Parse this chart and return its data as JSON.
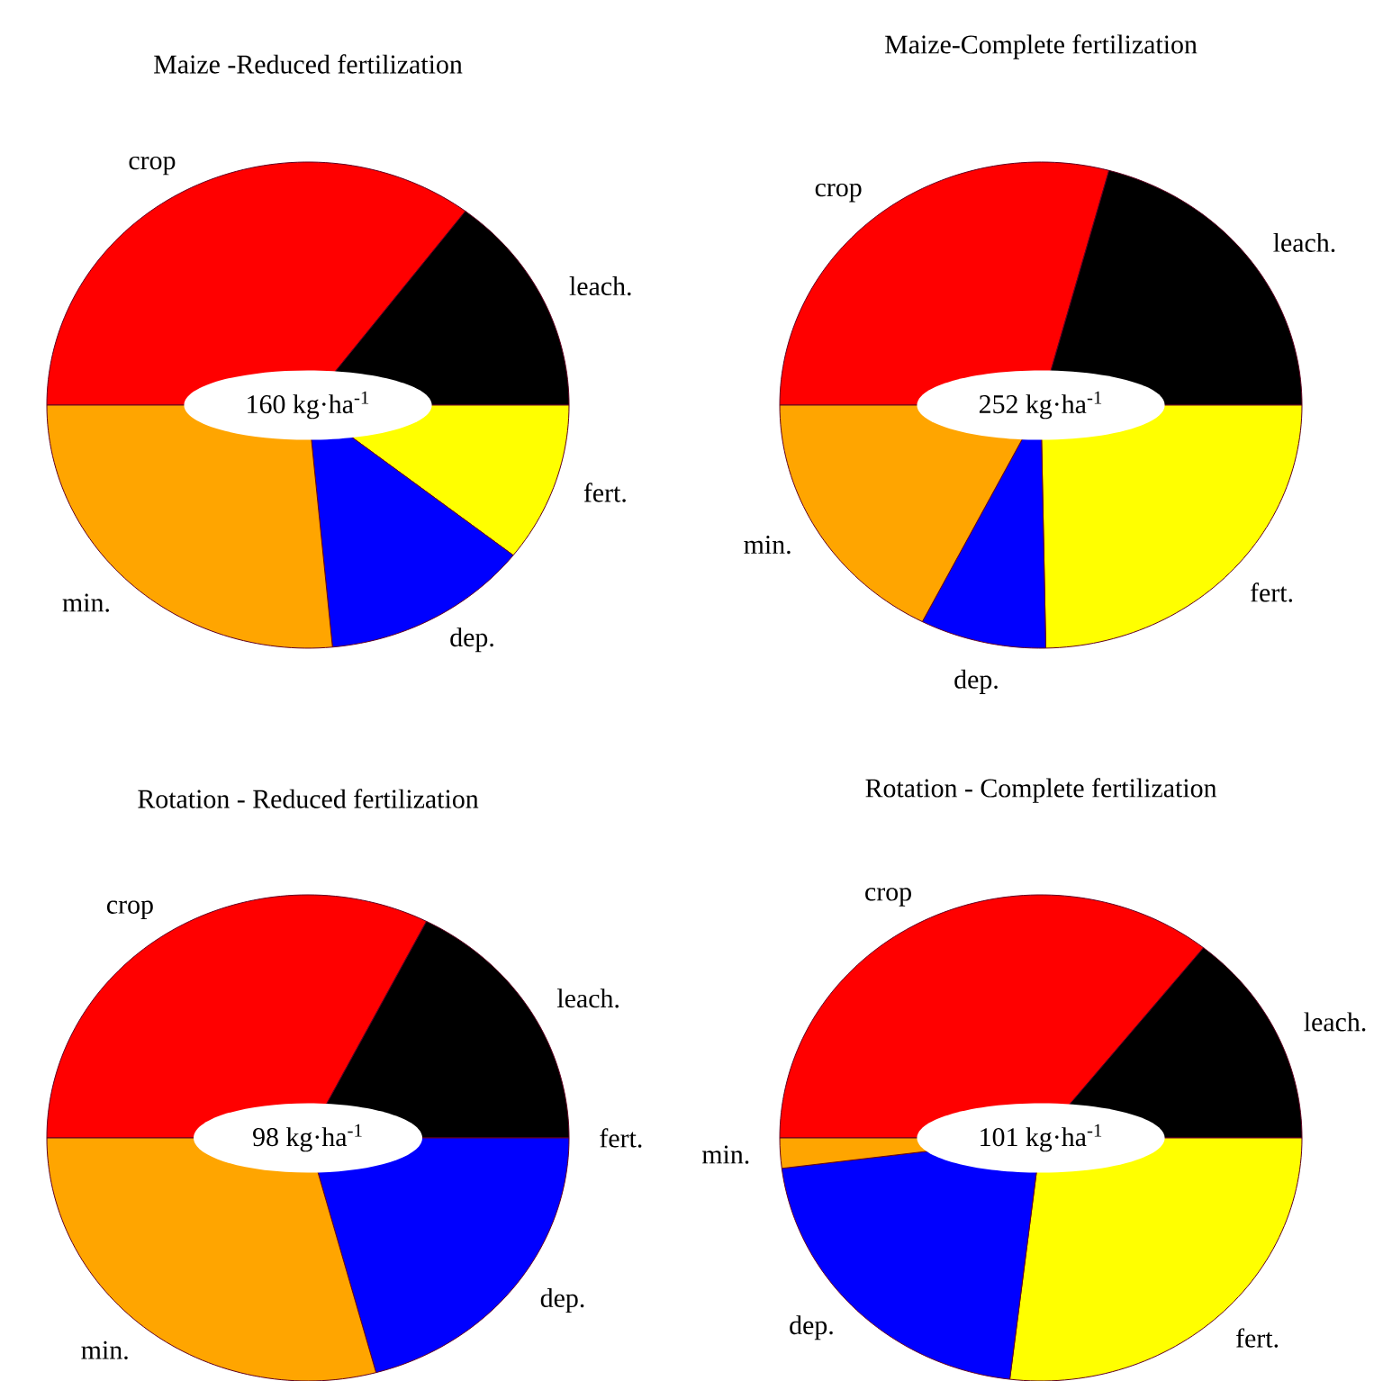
{
  "chart_data": [
    {
      "type": "pie",
      "title": "Maize -Reduced fertilization",
      "categories": [
        "crop",
        "leach.",
        "fert.",
        "dep.",
        "min."
      ],
      "values": [
        35.3,
        14.7,
        10.6,
        12.9,
        26.5
      ],
      "colors": [
        "#ff0000",
        "#000000",
        "#ffff00",
        "#0000ff",
        "#ffa500"
      ],
      "annotations": [
        "160 kg·ha$^{-1}$"
      ]
    },
    {
      "type": "pie",
      "title": "Maize-Complete fertilization",
      "categories": [
        "crop",
        "leach.",
        "fert.",
        "dep.",
        "min."
      ],
      "values": [
        29.2,
        20.8,
        24.7,
        7.8,
        17.5
      ],
      "colors": [
        "#ff0000",
        "#000000",
        "#ffff00",
        "#0000ff",
        "#ffa500"
      ],
      "annotations": [
        "252 kg·ha$^{-1}$"
      ]
    },
    {
      "type": "pie",
      "title": "Rotation - Reduced fertilization",
      "categories": [
        "crop",
        "leach.",
        "fert.",
        "dep.",
        "min."
      ],
      "values": [
        32.5,
        17.5,
        0,
        20.8,
        29.2
      ],
      "colors": [
        "#ff0000",
        "#000000",
        "#ffff00",
        "#0000ff",
        "#ffa500"
      ],
      "annotations": [
        "98 kg·ha$^{-1}$"
      ]
    },
    {
      "type": "pie",
      "title": "Rotation - Complete fertilization",
      "categories": [
        "crop",
        "leach.",
        "fert.",
        "dep.",
        "min."
      ],
      "values": [
        35.7,
        14.3,
        26.9,
        21.1,
        2.0
      ],
      "colors": [
        "#ff0000",
        "#000000",
        "#ffff00",
        "#0000ff",
        "#ffa500"
      ],
      "annotations": [
        "101 kg·ha$^{-1}$"
      ]
    }
  ]
}
